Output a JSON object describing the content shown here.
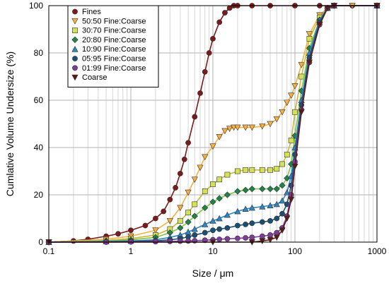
{
  "chart_data": {
    "type": "line",
    "title": "",
    "xlabel": "Size / μm",
    "ylabel": "Cumlative Volume Undersize (%)",
    "x_scale": "log",
    "xlim": [
      0.1,
      1000
    ],
    "ylim": [
      0,
      100
    ],
    "x_ticks": [
      0.1,
      1,
      10,
      100,
      1000
    ],
    "x_tick_labels": [
      "0.1",
      "1",
      "10",
      "100",
      "1000"
    ],
    "y_ticks": [
      0,
      20,
      40,
      60,
      80,
      100
    ],
    "y_tick_labels": [
      "0",
      "20",
      "40",
      "60",
      "80",
      "100"
    ],
    "grid": true,
    "legend_position": "top-left",
    "series": [
      {
        "name": "Fines",
        "marker": "circle",
        "color": "#7b1a1a",
        "line_color": "#7b1a1a",
        "x": [
          0.1,
          0.2,
          0.3,
          0.5,
          0.7,
          1,
          1.5,
          2,
          2.5,
          3,
          3.5,
          4,
          4.5,
          5,
          6,
          7,
          8,
          9,
          10,
          12,
          14,
          16,
          18,
          20,
          30,
          50,
          100,
          200,
          500,
          1000
        ],
        "y": [
          0,
          0.5,
          1.2,
          2.5,
          3.5,
          5,
          7,
          10,
          13,
          18,
          23,
          29,
          35,
          42,
          53,
          63,
          72,
          80,
          86,
          93,
          97,
          99,
          100,
          100,
          100,
          100,
          100,
          100,
          100,
          100
        ]
      },
      {
        "name": "50:50 Fine:Coarse",
        "marker": "triangle-down",
        "color": "#f5b041",
        "line_color": "#f5b041",
        "x": [
          0.1,
          0.5,
          1,
          2,
          3,
          4,
          5,
          6,
          7,
          8,
          10,
          12,
          14,
          16,
          18,
          20,
          25,
          30,
          40,
          50,
          60,
          70,
          80,
          90,
          100,
          120,
          150,
          200,
          250,
          300,
          500,
          1000
        ],
        "y": [
          0,
          1.2,
          2.5,
          5,
          9,
          14.5,
          21,
          26.5,
          31.5,
          36,
          40.5,
          44.5,
          47,
          48,
          48.5,
          48.5,
          48.5,
          48.5,
          49,
          50,
          52,
          55,
          59,
          62,
          66,
          75,
          88,
          96,
          99,
          100,
          100,
          100
        ]
      },
      {
        "name": "30:70 Fine:Coarse",
        "marker": "square",
        "color": "#d4e157",
        "line_color": "#c9b93a",
        "x": [
          0.1,
          0.5,
          1,
          2,
          3,
          4,
          5,
          6,
          8,
          10,
          12,
          15,
          20,
          25,
          30,
          40,
          50,
          60,
          70,
          80,
          90,
          100,
          120,
          150,
          200,
          250,
          300,
          1000
        ],
        "y": [
          0,
          0.7,
          1.5,
          3,
          5.5,
          9,
          12.5,
          16,
          21.5,
          24.5,
          26.5,
          28.5,
          30,
          30.5,
          30.5,
          30.5,
          30.5,
          31,
          33,
          37,
          43,
          55,
          70,
          86,
          95,
          99,
          100,
          100
        ]
      },
      {
        "name": "20:80 Fine:Coarse",
        "marker": "diamond",
        "color": "#1e8449",
        "line_color": "#82c341",
        "x": [
          0.1,
          0.5,
          1,
          2,
          3,
          4,
          5,
          6,
          8,
          10,
          12,
          15,
          20,
          25,
          30,
          40,
          50,
          60,
          70,
          80,
          90,
          100,
          120,
          150,
          200,
          250,
          300,
          1000
        ],
        "y": [
          0,
          0.5,
          1,
          2,
          4,
          6,
          8.5,
          11,
          14.5,
          17,
          18.5,
          20,
          21.5,
          22,
          22.5,
          22.5,
          22.5,
          22.5,
          24,
          27,
          33,
          45,
          64,
          82,
          94,
          99,
          100,
          100
        ]
      },
      {
        "name": "10:90 Fine:Coarse",
        "marker": "triangle-up",
        "color": "#2e86c1",
        "line_color": "#2e86c1",
        "x": [
          0.1,
          0.5,
          1,
          2,
          3,
          4,
          5,
          6,
          8,
          10,
          12,
          15,
          20,
          25,
          30,
          40,
          50,
          60,
          70,
          80,
          90,
          100,
          120,
          150,
          200,
          250,
          300,
          1000
        ],
        "y": [
          0,
          0.3,
          0.5,
          1,
          2,
          3,
          4.3,
          5.5,
          7.5,
          9,
          10,
          11.5,
          13,
          14,
          14.5,
          15,
          15.5,
          16,
          17.5,
          21,
          28,
          40,
          60,
          80,
          94,
          99,
          100,
          100
        ]
      },
      {
        "name": "05:95 Fine:Coarse",
        "marker": "circle",
        "color": "#1b4f72",
        "line_color": "#1b4f72",
        "x": [
          0.1,
          0.5,
          1,
          2,
          3,
          4,
          5,
          6,
          8,
          10,
          12,
          15,
          20,
          25,
          30,
          40,
          50,
          60,
          70,
          80,
          90,
          100,
          120,
          150,
          200,
          250,
          300,
          1000
        ],
        "y": [
          0,
          0.1,
          0.3,
          0.5,
          1,
          1.5,
          2.2,
          3,
          4,
          5,
          5.5,
          6,
          7,
          7.5,
          8,
          8.5,
          9,
          10,
          12,
          16,
          24,
          37,
          58,
          78,
          93,
          99,
          100,
          100
        ]
      },
      {
        "name": "01:99 Fine:Coarse",
        "marker": "circle",
        "color": "#7d3c98",
        "line_color": "#7d3c98",
        "x": [
          0.1,
          0.5,
          1,
          2,
          3,
          4,
          5,
          6,
          8,
          10,
          12,
          15,
          20,
          25,
          30,
          40,
          50,
          60,
          70,
          80,
          90,
          100,
          120,
          150,
          200,
          250,
          300,
          1000
        ],
        "y": [
          0,
          0,
          0.1,
          0.2,
          0.3,
          0.4,
          0.5,
          0.6,
          0.8,
          1,
          1.2,
          1.4,
          1.6,
          1.8,
          2,
          2.5,
          3,
          4,
          6,
          11,
          20,
          34,
          56,
          76,
          92,
          99,
          100,
          100
        ]
      },
      {
        "name": "Coarse",
        "marker": "triangle-down",
        "color": "#5b1a1a",
        "line_color": "#5b1a1a",
        "x": [
          0.1,
          10,
          30,
          40,
          50,
          60,
          70,
          80,
          90,
          100,
          120,
          150,
          200,
          250,
          300,
          1000
        ],
        "y": [
          0,
          0,
          0,
          0.5,
          1,
          2,
          5,
          10,
          18,
          32,
          55,
          76,
          92,
          99,
          100,
          100
        ]
      }
    ]
  }
}
